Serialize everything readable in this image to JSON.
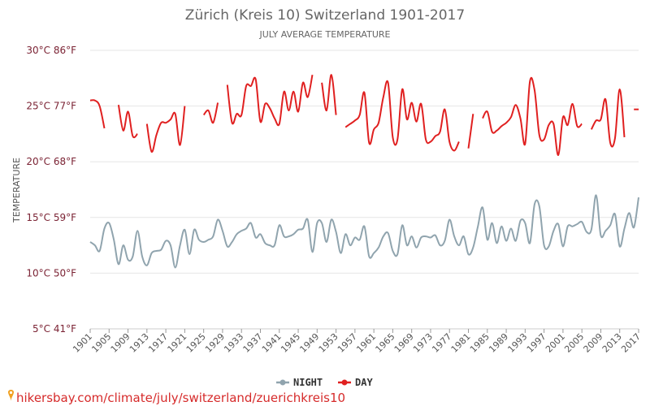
{
  "chart_data": {
    "type": "line",
    "title": "Zürich (Kreis 10) Switzerland 1901-2017",
    "subtitle": "JULY AVERAGE TEMPERATURE",
    "ylabel": "TEMPERATURE",
    "xlabel": "",
    "ylim": [
      5,
      30
    ],
    "xlim": [
      1901,
      2017
    ],
    "yticks": [
      {
        "value": 30,
        "label": "30°C 86°F"
      },
      {
        "value": 25,
        "label": "25°C 77°F"
      },
      {
        "value": 20,
        "label": "20°C 68°F"
      },
      {
        "value": 15,
        "label": "15°C 59°F"
      },
      {
        "value": 10,
        "label": "10°C 50°F"
      },
      {
        "value": 5,
        "label": "5°C 41°F"
      }
    ],
    "xticks": [
      "1901",
      "1905",
      "1909",
      "1913",
      "1917",
      "1921",
      "1925",
      "1929",
      "1933",
      "1937",
      "1941",
      "1945",
      "1949",
      "1953",
      "1957",
      "1961",
      "1965",
      "1969",
      "1973",
      "1977",
      "1981",
      "1985",
      "1989",
      "1993",
      "1997",
      "2001",
      "2005",
      "2009",
      "2013",
      "2017"
    ],
    "legend_position": "bottom-center",
    "series": [
      {
        "name": "NIGHT",
        "color": "#90a4ae",
        "start_year": 1901,
        "values": [
          12.8,
          12.5,
          12,
          14,
          14.5,
          13,
          10.8,
          12.5,
          11.2,
          11.5,
          13.8,
          11.5,
          10.7,
          11.8,
          12,
          12.1,
          12.9,
          12.5,
          10.5,
          12.5,
          13.9,
          11.7,
          13.9,
          13,
          12.8,
          13,
          13.3,
          14.8,
          13.8,
          12.4,
          12.8,
          13.5,
          13.8,
          14,
          14.5,
          13.2,
          13.5,
          12.7,
          12.5,
          12.5,
          14.3,
          13.3,
          13.3,
          13.5,
          13.9,
          14,
          14.8,
          11.9,
          14.5,
          14.5,
          12.8,
          14.8,
          13.7,
          11.8,
          13.5,
          12.5,
          13.2,
          13,
          14.2,
          11.5,
          11.8,
          12.3,
          13.3,
          13.6,
          12,
          11.7,
          14.3,
          12.5,
          13.3,
          12.3,
          13.2,
          13.3,
          13.2,
          13.4,
          12.5,
          12.9,
          14.8,
          13.3,
          12.5,
          13.3,
          11.7,
          12.3,
          14.2,
          15.9,
          13,
          14.5,
          12.7,
          14.2,
          12.9,
          14,
          12.9,
          14.7,
          14.5,
          12.7,
          16.2,
          16,
          12.5,
          12.4,
          13.8,
          14.4,
          12.4,
          14.2,
          14.2,
          14.4,
          14.6,
          13.7,
          13.9,
          17,
          13.4,
          13.8,
          14.3,
          15.3,
          12.4,
          14,
          15.4,
          14.1,
          16.8
        ]
      },
      {
        "name": "DAY",
        "color": "#e02020",
        "start_year": 1901,
        "values": [
          25.5,
          25.5,
          25,
          23,
          null,
          null,
          25.1,
          22.8,
          24.5,
          22.3,
          22.5,
          null,
          23.4,
          20.9,
          22.4,
          23.5,
          23.5,
          23.8,
          24.3,
          21.5,
          25,
          null,
          null,
          null,
          24.2,
          24.6,
          23.5,
          25.3,
          null,
          26.9,
          23.5,
          24.3,
          24.2,
          26.8,
          26.8,
          27.4,
          23.6,
          25.2,
          24.8,
          23.9,
          23.4,
          26.3,
          24.6,
          26.3,
          24.5,
          27.1,
          25.8,
          27.8,
          null,
          27.1,
          24.6,
          27.8,
          24.2,
          null,
          23.1,
          23.4,
          23.7,
          24.2,
          26.2,
          21.7,
          22.9,
          23.5,
          25.8,
          27.1,
          22.2,
          22,
          26.5,
          23.8,
          25.3,
          23.6,
          25.2,
          22,
          21.8,
          22.3,
          22.7,
          24.7,
          21.8,
          21,
          21.8,
          null,
          21.2,
          24.3,
          null,
          23.9,
          24.5,
          22.7,
          22.8,
          23.2,
          23.5,
          24,
          25.1,
          23.9,
          21.6,
          27.2,
          26.4,
          22.4,
          22,
          23.3,
          23.4,
          20.6,
          24,
          23.3,
          25.2,
          23.2,
          23.4,
          null,
          22.9,
          23.7,
          23.8,
          25.6,
          21.7,
          22.1,
          26.5,
          22.2,
          null,
          24.7,
          24.7
        ]
      }
    ]
  },
  "legend": {
    "night": "NIGHT",
    "day": "DAY"
  },
  "source": "hikersbay.com/climate/july/switzerland/zuerichkreis10"
}
